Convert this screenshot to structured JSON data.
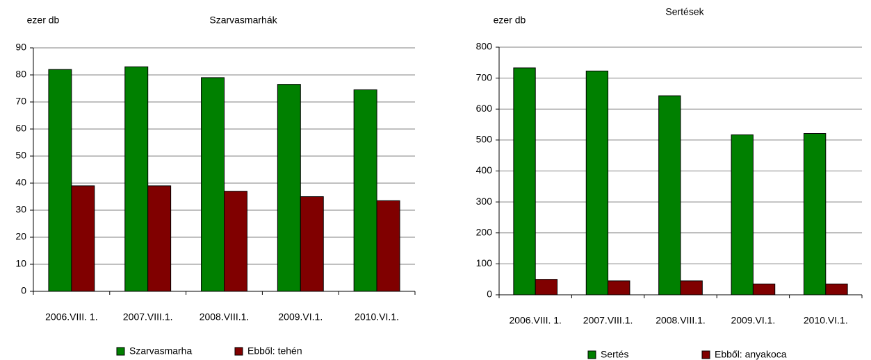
{
  "chart_data": [
    {
      "type": "bar",
      "title": "Szarvasmarhák",
      "y_label": "ezer db",
      "categories": [
        "2006.VIII. 1.",
        "2007.VIII.1.",
        "2008.VIII.1.",
        "2009.VI.1.",
        "2010.VI.1."
      ],
      "series": [
        {
          "name": "Szarvasmarha",
          "color": "#008000",
          "values": [
            82,
            83,
            79,
            76.5,
            74.5
          ]
        },
        {
          "name": "Ebből: tehén",
          "color": "#800000",
          "values": [
            39,
            39,
            37,
            35,
            33.5
          ]
        }
      ],
      "ylim": [
        0,
        90
      ],
      "yticks": [
        0,
        10,
        20,
        30,
        40,
        50,
        60,
        70,
        80,
        90
      ],
      "grid": true,
      "legend": "bottom"
    },
    {
      "type": "bar",
      "title": "Sertések",
      "y_label": "ezer db",
      "categories": [
        "2006.VIII. 1.",
        "2007.VIII.1.",
        "2008.VIII.1.",
        "2009.VI.1.",
        "2010.VI.1."
      ],
      "series": [
        {
          "name": "Sertés",
          "color": "#008000",
          "values": [
            733,
            723,
            643,
            517,
            521
          ]
        },
        {
          "name": "Ebből: anyakoca",
          "color": "#800000",
          "values": [
            50,
            45,
            45,
            35,
            35
          ]
        }
      ],
      "ylim": [
        0,
        800
      ],
      "yticks": [
        0,
        100,
        200,
        300,
        400,
        500,
        600,
        700,
        800
      ],
      "grid": true,
      "legend": "bottom"
    }
  ]
}
